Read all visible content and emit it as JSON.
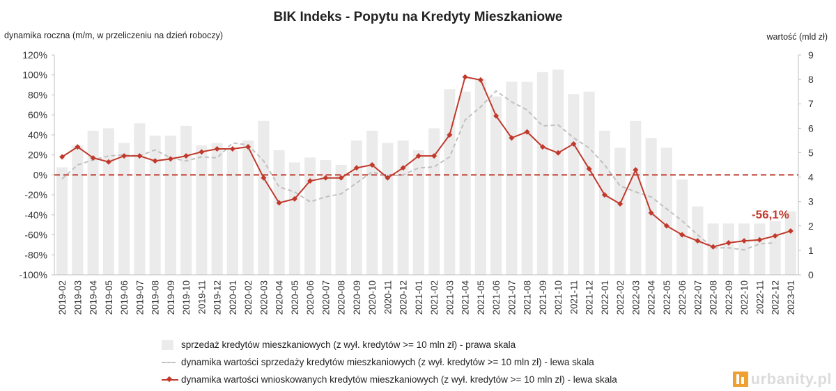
{
  "chart_data": {
    "type": "bar",
    "title": "BIK Indeks - Popytu na Kredyty Mieszkaniowe",
    "ylabel_left": "dynamika roczna (m/m, w przeliczeniu na dzień roboczy)",
    "ylabel_right": "wartość (mld zł)",
    "categories": [
      "2019-02",
      "2019-03",
      "2019-04",
      "2019-05",
      "2019-06",
      "2019-07",
      "2019-08",
      "2019-09",
      "2019-10",
      "2019-11",
      "2019-12",
      "2020-01",
      "2020-02",
      "2020-03",
      "2020-04",
      "2020-05",
      "2020-06",
      "2020-07",
      "2020-08",
      "2020-09",
      "2020-10",
      "2020-11",
      "2020-12",
      "2021-01",
      "2021-02",
      "2021-03",
      "2021-04",
      "2021-05",
      "2021-06",
      "2021-07",
      "2021-08",
      "2021-09",
      "2021-10",
      "2021-11",
      "2021-12",
      "2022-01",
      "2022-02",
      "2022-03",
      "2022-04",
      "2022-05",
      "2022-06",
      "2022-07",
      "2022-08",
      "2022-09",
      "2022-10",
      "2022-11",
      "2022-12",
      "2023-01"
    ],
    "left_axis": {
      "ylim": [
        -100,
        120
      ],
      "ticks": [
        "120%",
        "100%",
        "80%",
        "60%",
        "40%",
        "20%",
        "0%",
        "-20%",
        "-40%",
        "-60%",
        "-80%",
        "-100%"
      ]
    },
    "right_axis": {
      "ylim": [
        0,
        9
      ],
      "ticks": [
        "9",
        "8",
        "7",
        "6",
        "5",
        "4",
        "3",
        "2",
        "1",
        "0"
      ]
    },
    "series": [
      {
        "name": "sprzedaż kredytów mieszkaniowych (z wył. kredytów >= 10 mln zł) - prawa skala",
        "kind": "bar",
        "axis": "right",
        "color": "#ebebeb",
        "values": [
          4.4,
          5.3,
          5.9,
          6.0,
          5.4,
          6.2,
          5.7,
          5.7,
          6.1,
          5.3,
          5.4,
          5.1,
          5.5,
          6.3,
          5.1,
          4.6,
          4.8,
          4.7,
          4.5,
          5.5,
          5.9,
          5.4,
          5.5,
          5.1,
          6.0,
          7.6,
          7.5,
          8.0,
          7.3,
          7.9,
          7.9,
          8.3,
          8.4,
          7.4,
          7.5,
          5.9,
          5.2,
          6.3,
          5.6,
          5.2,
          3.9,
          2.8,
          2.1,
          2.1,
          2.1,
          2.1,
          2.2,
          2.6
        ]
      },
      {
        "name": "dynamika wartości sprzedaży kredytów mieszkaniowych (z wył. kredytów >= 10 mln zł) - lewa skala",
        "kind": "dashed-line",
        "axis": "left",
        "color": "#c0c0c0",
        "values": [
          -4,
          10,
          15,
          19,
          20,
          19,
          25,
          17,
          14,
          18,
          17,
          32,
          30,
          14,
          -12,
          -17,
          -27,
          -22,
          -19,
          -8,
          3,
          -1,
          0,
          7,
          8,
          18,
          55,
          68,
          84,
          73,
          65,
          49,
          50,
          37,
          27,
          10,
          -11,
          -17,
          -22,
          -34,
          -46,
          -60,
          -73,
          -73,
          -75,
          -69,
          -68,
          null
        ]
      },
      {
        "name": "dynamika wartości wnioskowanych kredytów mieszkaniowych (z wył. kredytów >= 10 mln zł) - lewa skala",
        "kind": "line-marker",
        "axis": "left",
        "color": "#c0392b",
        "values": [
          18,
          28,
          17,
          13,
          19,
          19,
          14,
          16,
          19,
          23,
          26,
          26,
          28,
          -3,
          -28,
          -24,
          -6,
          -3,
          -3,
          7,
          10,
          -3,
          7,
          19,
          19,
          40,
          98,
          95,
          59,
          37,
          43,
          28,
          22,
          31,
          6,
          -20,
          -29,
          5,
          -38,
          -51,
          -60,
          -66,
          -72,
          -68,
          -66,
          -65,
          -61,
          -56.1
        ]
      }
    ],
    "annotations": [
      {
        "text": "-56,1%",
        "category": "2023-01",
        "color": "#c0392b"
      }
    ],
    "reference_line": {
      "value": 0,
      "axis": "left",
      "style": "dashed",
      "color": "#c0392b"
    },
    "legend": {
      "placement": "bottom"
    },
    "grid": false,
    "watermark": "urbanity.pl"
  }
}
